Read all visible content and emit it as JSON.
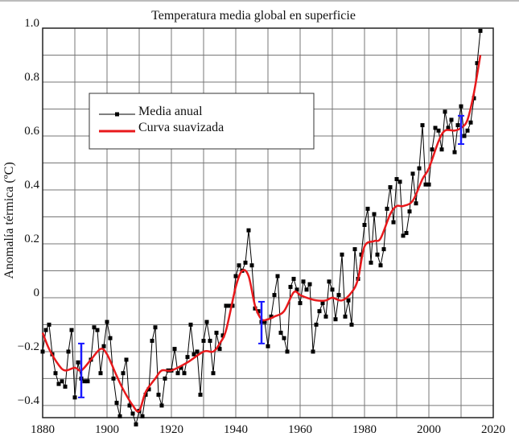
{
  "chart_data": {
    "type": "line",
    "title": "Temperatura media global en superficie",
    "xlabel": "",
    "ylabel": "Anomalía térmica (ºC)",
    "xlim": [
      1880,
      2020
    ],
    "ylim": [
      -0.445,
      1.0
    ],
    "x_ticks": [
      1880,
      1900,
      1920,
      1940,
      1960,
      1980,
      2000,
      2020
    ],
    "y_ticks": [
      {
        "value": 1.0,
        "label": "1.0"
      },
      {
        "value": 0.8,
        "label": "0.8"
      },
      {
        "value": 0.6,
        "label": "0.6"
      },
      {
        "value": 0.4,
        "label": "0.4"
      },
      {
        "value": 0.2,
        "label": "0.2"
      },
      {
        "value": 0,
        "label": "0"
      },
      {
        "value": -0.2,
        "label": "−0.2"
      },
      {
        "value": -0.4,
        "label": "−0.4"
      }
    ],
    "grid": true,
    "legend_position": "upper-left",
    "series": [
      {
        "name": "Media anual",
        "color": "#000000",
        "marker": "square",
        "x_start": 1880,
        "values": [
          -0.2,
          -0.12,
          -0.1,
          -0.21,
          -0.28,
          -0.32,
          -0.31,
          -0.33,
          -0.2,
          -0.12,
          -0.37,
          -0.24,
          -0.3,
          -0.31,
          -0.31,
          -0.23,
          -0.11,
          -0.12,
          -0.28,
          -0.18,
          -0.09,
          -0.15,
          -0.3,
          -0.39,
          -0.44,
          -0.28,
          -0.23,
          -0.4,
          -0.43,
          -0.47,
          -0.42,
          -0.44,
          -0.36,
          -0.34,
          -0.16,
          -0.11,
          -0.36,
          -0.4,
          -0.3,
          -0.27,
          -0.27,
          -0.19,
          -0.28,
          -0.26,
          -0.28,
          -0.22,
          -0.1,
          -0.21,
          -0.2,
          -0.36,
          -0.16,
          -0.09,
          -0.16,
          -0.28,
          -0.13,
          -0.19,
          -0.14,
          -0.03,
          -0.03,
          -0.03,
          0.08,
          0.12,
          0.1,
          0.13,
          0.25,
          0.12,
          -0.04,
          -0.05,
          -0.09,
          -0.09,
          -0.18,
          -0.07,
          0.01,
          0.08,
          -0.13,
          -0.15,
          -0.2,
          0.04,
          0.07,
          0.03,
          -0.02,
          0.06,
          0.03,
          0.05,
          -0.2,
          -0.1,
          -0.05,
          -0.02,
          -0.07,
          0.06,
          0.03,
          -0.08,
          0.01,
          0.16,
          -0.07,
          -0.01,
          -0.1,
          0.18,
          0.07,
          0.16,
          0.27,
          0.33,
          0.13,
          0.31,
          0.16,
          0.12,
          0.18,
          0.33,
          0.41,
          0.28,
          0.44,
          0.43,
          0.23,
          0.24,
          0.32,
          0.46,
          0.35,
          0.48,
          0.64,
          0.42,
          0.42,
          0.55,
          0.63,
          0.62,
          0.55,
          0.69,
          0.63,
          0.66,
          0.54,
          0.64,
          0.71,
          0.6,
          0.62,
          0.65,
          0.74,
          0.87,
          0.99
        ]
      },
      {
        "name": "Curva suavizada",
        "color": "#e8191c",
        "x": [
          1880,
          1882,
          1885,
          1887,
          1890,
          1892,
          1895,
          1898,
          1900,
          1903,
          1905,
          1908,
          1910,
          1912,
          1915,
          1917,
          1920,
          1925,
          1930,
          1933,
          1935,
          1937,
          1940,
          1942,
          1944,
          1946,
          1948,
          1950,
          1952,
          1955,
          1958,
          1960,
          1962,
          1965,
          1968,
          1970,
          1973,
          1976,
          1978,
          1980,
          1983,
          1985,
          1988,
          1990,
          1992,
          1995,
          1998,
          2000,
          2003,
          2005,
          2008,
          2010,
          2012,
          2014,
          2016
        ],
        "values": [
          -0.13,
          -0.19,
          -0.25,
          -0.27,
          -0.26,
          -0.27,
          -0.23,
          -0.19,
          -0.21,
          -0.29,
          -0.34,
          -0.4,
          -0.42,
          -0.35,
          -0.3,
          -0.27,
          -0.27,
          -0.24,
          -0.2,
          -0.2,
          -0.17,
          -0.12,
          0.04,
          0.1,
          0.08,
          -0.03,
          -0.08,
          -0.08,
          -0.07,
          -0.05,
          0.02,
          0.01,
          0.0,
          -0.01,
          -0.01,
          0.0,
          -0.01,
          0.02,
          0.07,
          0.19,
          0.21,
          0.22,
          0.31,
          0.34,
          0.34,
          0.36,
          0.44,
          0.48,
          0.58,
          0.62,
          0.62,
          0.63,
          0.66,
          0.76,
          0.9
        ]
      }
    ],
    "error_bars": {
      "color": "#1a1aff",
      "items": [
        {
          "x": 1892,
          "low": -0.37,
          "high": -0.17
        },
        {
          "x": 1948,
          "low": -0.17,
          "high": -0.015
        },
        {
          "x": 2010,
          "low": 0.57,
          "high": 0.675
        }
      ]
    }
  }
}
